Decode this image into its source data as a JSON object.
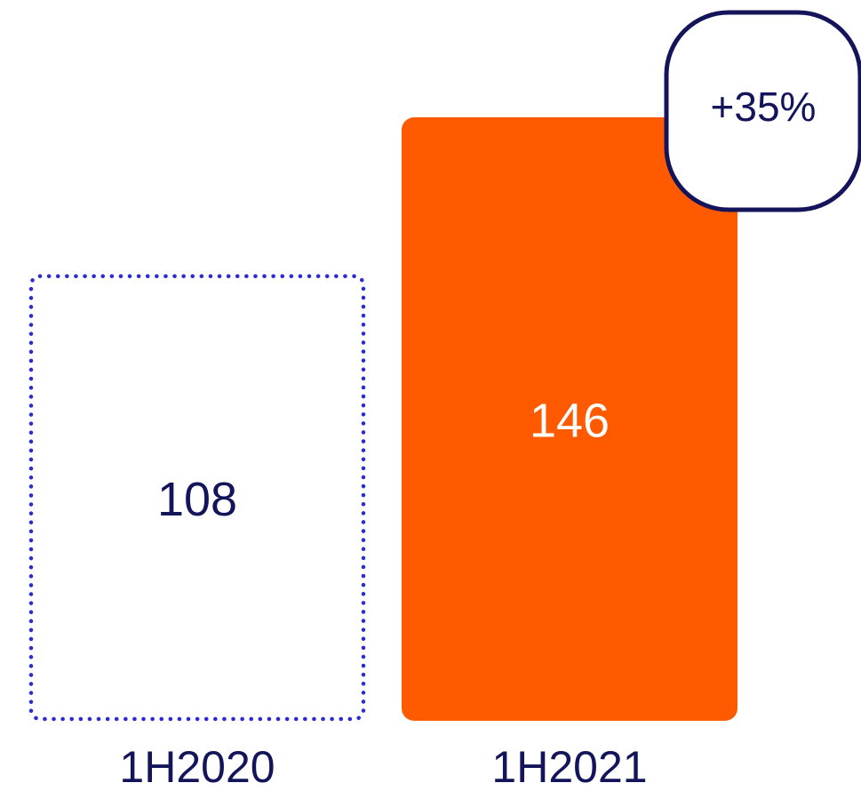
{
  "chart_data": {
    "type": "bar",
    "categories": [
      "1H2020",
      "1H2021"
    ],
    "values": [
      108,
      146
    ],
    "data_labels": [
      "108",
      "146"
    ],
    "change_badge": "+35%",
    "title": "",
    "xlabel": "",
    "ylabel": "",
    "ylim": [
      0,
      146
    ],
    "grid": false,
    "legend": "none",
    "styles": [
      {
        "fill": "none",
        "stroke": "#2b2bd6",
        "stroke_style": "dotted",
        "label_color": "#14145a"
      },
      {
        "fill": "#ff5a00",
        "stroke": "none",
        "stroke_style": "solid",
        "label_color": "#ffffff"
      }
    ],
    "badge_stroke": "#14145a",
    "category_label_color": "#14145a"
  }
}
